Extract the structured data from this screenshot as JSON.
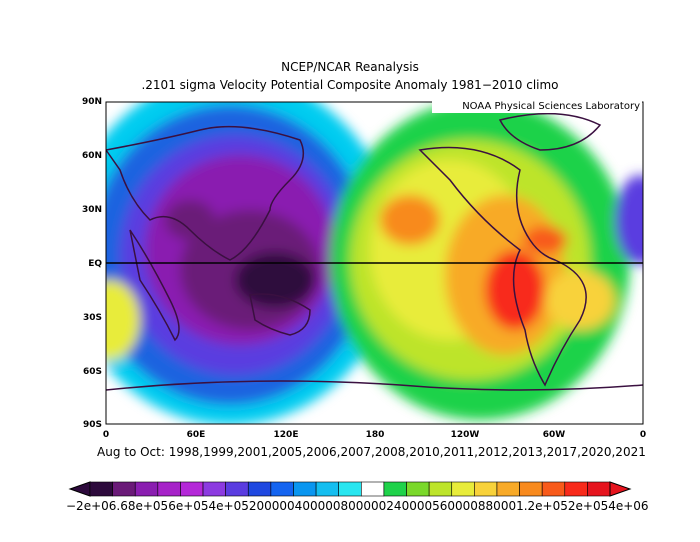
{
  "title": "NCEP/NCAR Reanalysis",
  "subtitle": ".2101 sigma Velocity Potential  Composite Anomaly 1981−2010 climo",
  "credit": "NOAA Physical Sciences Laboratory",
  "footer": "Aug to Oct: 1998,1999,2001,2005,2006,2007,2008,2010,2011,2012,2013,2017,2020,2021",
  "lat_labels": [
    "90N",
    "60N",
    "30N",
    "EQ",
    "30S",
    "60S",
    "90S"
  ],
  "lon_labels": [
    "0",
    "60E",
    "120E",
    "180",
    "120W",
    "60W",
    "0"
  ],
  "colorbar_text": "−2e+06.68e+056e+054e+05200000400000800000240000560000880001.2e+052e+054e+06",
  "colorbar_colors": [
    "#2d0a3c",
    "#6a1a78",
    "#8a1eb0",
    "#a622c8",
    "#b428d8",
    "#8c3ae0",
    "#5a3ce0",
    "#1f48e0",
    "#1464f0",
    "#0a96f0",
    "#14bef0",
    "#28e6f0",
    "#ffffff",
    "#1fd24a",
    "#7ad82a",
    "#bde42a",
    "#e8ec3a",
    "#f8d23a",
    "#f8aa28",
    "#f88a1e",
    "#f85a1a",
    "#f82a1a",
    "#e6141e"
  ],
  "colors": {
    "equator": "#000000",
    "coastline": "#3a1040"
  }
}
